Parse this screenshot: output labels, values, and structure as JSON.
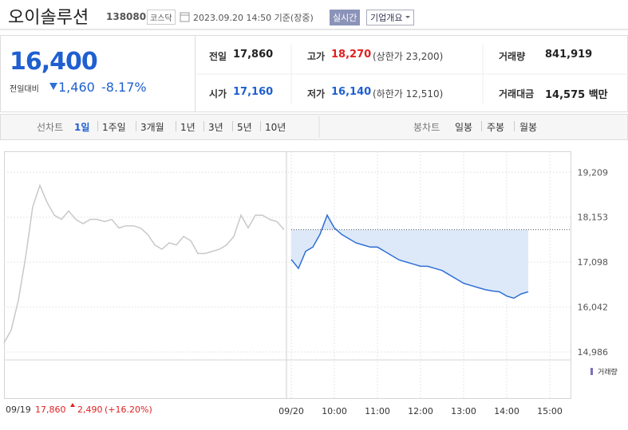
{
  "header": {
    "name": "오이솔루션",
    "code": "138080",
    "market": "코스닥",
    "timestamp": "2023.09.20 14:50 기준(장중)",
    "realtime": "실시간",
    "company_info": "기업개요"
  },
  "quote": {
    "price": "16,400",
    "change_label": "전일대비",
    "change": "1,460",
    "change_pct": "-8.17%"
  },
  "table": {
    "rows": [
      [
        {
          "label": "전일",
          "value": "17,860"
        },
        {
          "label": "고가",
          "value": "18,270",
          "note": "(상한가 23,200)"
        },
        {
          "label": "거래량",
          "value": "841,919"
        }
      ],
      [
        {
          "label": "시가",
          "value": "17,160"
        },
        {
          "label": "저가",
          "value": "16,140",
          "note": "(하한가 12,510)"
        },
        {
          "label": "거래대금",
          "value": "14,575 백만"
        }
      ]
    ]
  },
  "tabs": {
    "line_label": "선차트",
    "line": [
      "1일",
      "1주일",
      "3개월",
      "1년",
      "3년",
      "5년",
      "10년"
    ],
    "candle_label": "봉차트",
    "candle": [
      "일봉",
      "주봉",
      "월봉"
    ]
  },
  "chart_data": {
    "type": "line",
    "categories": [
      "09/19",
      null,
      null,
      null,
      null,
      null,
      null,
      null,
      null,
      null,
      null,
      null,
      null,
      null,
      null,
      null,
      null,
      null,
      null,
      null,
      null,
      null,
      null,
      null,
      null,
      null,
      null,
      null,
      null,
      null,
      null,
      null,
      null,
      null,
      null,
      null,
      null,
      null,
      null,
      null,
      "09/20",
      null,
      null,
      null,
      null,
      null,
      "10:00",
      null,
      null,
      null,
      null,
      null,
      "11:00",
      null,
      null,
      null,
      null,
      null,
      "12:00",
      null,
      null,
      null,
      null,
      null,
      "13:00",
      null,
      null,
      null,
      null,
      null,
      "14:00",
      null,
      null,
      null,
      null,
      null,
      "15:00",
      null,
      null,
      null
    ],
    "series": [
      {
        "color": "#c8c8c8",
        "values": [
          15200,
          15500,
          16200,
          17200,
          18400,
          18900,
          18500,
          18200,
          18100,
          18300,
          18100,
          18000,
          18100,
          18100,
          18050,
          18100,
          17900,
          17950,
          17950,
          17900,
          17750,
          17500,
          17400,
          17550,
          17500,
          17700,
          17600,
          17300,
          17300,
          17350,
          17400,
          17500,
          17700,
          18200,
          17900,
          18200,
          18200,
          18100,
          18050,
          17860,
          null,
          null,
          null,
          null,
          null,
          null,
          null,
          null,
          null,
          null,
          null,
          null,
          null,
          null,
          null,
          null,
          null,
          null,
          null,
          null,
          null,
          null,
          null,
          null,
          null,
          null,
          null,
          null,
          null,
          null,
          null,
          null,
          null,
          null,
          null,
          null,
          null,
          null,
          null,
          null
        ]
      },
      {
        "color": "#2f6fd6",
        "values": [
          null,
          null,
          null,
          null,
          null,
          null,
          null,
          null,
          null,
          null,
          null,
          null,
          null,
          null,
          null,
          null,
          null,
          null,
          null,
          null,
          null,
          null,
          null,
          null,
          null,
          null,
          null,
          null,
          null,
          null,
          null,
          null,
          null,
          null,
          null,
          null,
          null,
          null,
          null,
          null,
          17160,
          16950,
          17350,
          17450,
          17750,
          18200,
          17900,
          17750,
          17650,
          17550,
          17500,
          17450,
          17450,
          17350,
          17250,
          17150,
          17100,
          17050,
          17000,
          17000,
          16950,
          16900,
          16800,
          16700,
          16600,
          16550,
          16500,
          16450,
          16420,
          16400,
          16300,
          16250,
          16350,
          16400,
          null,
          null,
          null,
          null,
          null,
          null
        ]
      }
    ],
    "prev_close": 17860,
    "ylim": [
      14800,
      19700
    ],
    "yticks": [
      {
        "value": 14986,
        "label": "14,986"
      },
      {
        "value": 16042,
        "label": "16,042"
      },
      {
        "value": 17098,
        "label": "17,098"
      },
      {
        "value": 18153,
        "label": "18,153"
      },
      {
        "value": 19209,
        "label": "19,209"
      }
    ],
    "grid": true,
    "volume_legend": "거래량"
  },
  "footer": {
    "date": "09/19",
    "close": "17,860",
    "change": "2,490",
    "change_pct": "(+16.20%)"
  }
}
